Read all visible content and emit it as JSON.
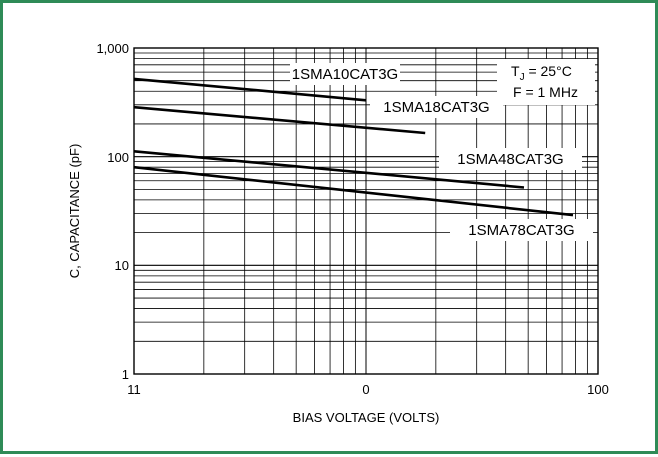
{
  "colors": {
    "frame_border": "#2e8b57",
    "series_line": "#000000",
    "grid": "#000000"
  },
  "chart_data": {
    "type": "line",
    "xscale": "log",
    "yscale": "log",
    "xlim": [
      1,
      100
    ],
    "ylim": [
      1,
      1000
    ],
    "xlabel": "BIAS VOLTAGE (VOLTS)",
    "ylabel": "C, CAPACITANCE (pF)",
    "xticks": [
      "11",
      "0",
      "100"
    ],
    "yticks": [
      "1,000",
      "100",
      "10",
      "1"
    ],
    "grid": true,
    "conditions": {
      "tj_label": "T",
      "tj_sub": "J",
      "tj_value": " = 25°C",
      "freq": "F = 1 MHz"
    },
    "series": [
      {
        "name": "1SMA10CAT3G",
        "x": [
          1,
          10
        ],
        "y": [
          520,
          330
        ]
      },
      {
        "name": "1SMA18CAT3G",
        "x": [
          1,
          18
        ],
        "y": [
          285,
          165
        ]
      },
      {
        "name": "1SMA48CAT3G",
        "x": [
          1,
          48
        ],
        "y": [
          112,
          52
        ]
      },
      {
        "name": "1SMA78CAT3G",
        "x": [
          1,
          78
        ],
        "y": [
          80,
          29
        ]
      }
    ]
  }
}
